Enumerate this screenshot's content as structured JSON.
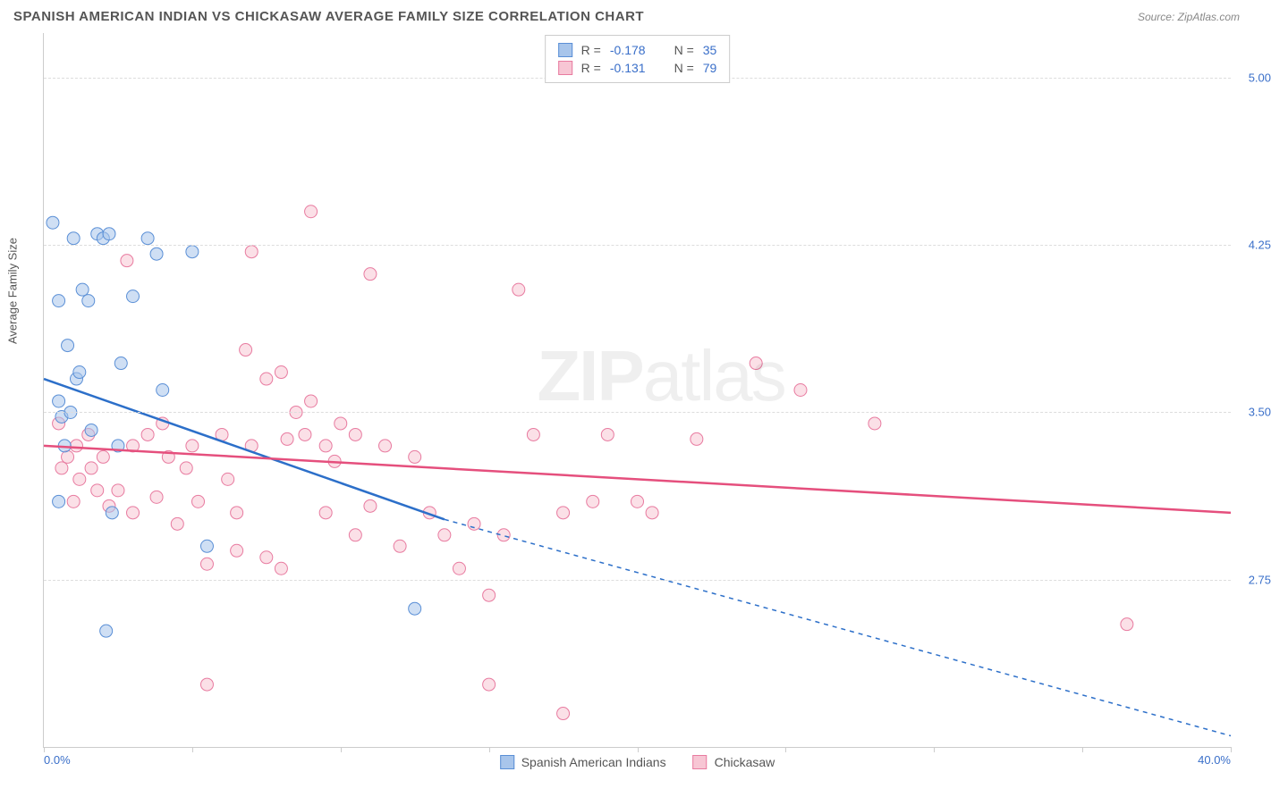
{
  "title": "SPANISH AMERICAN INDIAN VS CHICKASAW AVERAGE FAMILY SIZE CORRELATION CHART",
  "source": "Source: ZipAtlas.com",
  "watermark": {
    "part1": "ZIP",
    "part2": "atlas"
  },
  "chart": {
    "type": "scatter",
    "xlabel": "",
    "ylabel": "Average Family Size",
    "xlim": [
      0,
      40
    ],
    "ylim": [
      2.0,
      5.2
    ],
    "x_tick_labels": [
      {
        "x": 0,
        "label": "0.0%"
      },
      {
        "x": 40,
        "label": "40.0%"
      }
    ],
    "x_tick_positions": [
      0,
      5,
      10,
      15,
      20,
      25,
      30,
      35,
      40
    ],
    "y_ticks": [
      2.75,
      3.5,
      4.25,
      5.0
    ],
    "y_tick_labels": [
      "2.75",
      "3.50",
      "4.25",
      "5.00"
    ],
    "grid_color": "#dddddd",
    "background_color": "#ffffff",
    "axis_color": "#cccccc",
    "tick_label_color": "#3a6fc9",
    "label_fontsize": 13,
    "marker_radius": 7,
    "marker_opacity": 0.55,
    "line_width": 2.5
  },
  "series": [
    {
      "name": "Spanish American Indians",
      "color_fill": "#a8c5eb",
      "color_stroke": "#5a8fd6",
      "R": "-0.178",
      "N": "35",
      "trend": {
        "x1": 0,
        "y1": 3.65,
        "x2": 13.5,
        "y2": 3.02,
        "extend_x2": 40,
        "extend_y2": 2.05
      },
      "trend_color": "#2c6fc9",
      "points": [
        [
          0.3,
          4.35
        ],
        [
          0.5,
          4.0
        ],
        [
          0.5,
          3.55
        ],
        [
          0.5,
          3.1
        ],
        [
          0.6,
          3.48
        ],
        [
          0.7,
          3.35
        ],
        [
          0.8,
          3.8
        ],
        [
          0.9,
          3.5
        ],
        [
          1.0,
          4.28
        ],
        [
          1.1,
          3.65
        ],
        [
          1.2,
          3.68
        ],
        [
          1.3,
          4.05
        ],
        [
          1.5,
          4.0
        ],
        [
          1.6,
          3.42
        ],
        [
          1.8,
          4.3
        ],
        [
          2.0,
          4.28
        ],
        [
          2.1,
          2.52
        ],
        [
          2.2,
          4.3
        ],
        [
          2.3,
          3.05
        ],
        [
          2.5,
          3.35
        ],
        [
          2.6,
          3.72
        ],
        [
          3.0,
          4.02
        ],
        [
          3.5,
          4.28
        ],
        [
          3.8,
          4.21
        ],
        [
          4.0,
          3.6
        ],
        [
          5.0,
          4.22
        ],
        [
          5.5,
          2.9
        ],
        [
          12.5,
          2.62
        ]
      ]
    },
    {
      "name": "Chickasaw",
      "color_fill": "#f7c6d4",
      "color_stroke": "#e87ba0",
      "R": "-0.131",
      "N": "79",
      "trend": {
        "x1": 0,
        "y1": 3.35,
        "x2": 40,
        "y2": 3.05
      },
      "trend_color": "#e54f7d",
      "points": [
        [
          0.5,
          3.45
        ],
        [
          0.6,
          3.25
        ],
        [
          0.8,
          3.3
        ],
        [
          1.0,
          3.1
        ],
        [
          1.1,
          3.35
        ],
        [
          1.2,
          3.2
        ],
        [
          1.5,
          3.4
        ],
        [
          1.6,
          3.25
        ],
        [
          1.8,
          3.15
        ],
        [
          2.0,
          3.3
        ],
        [
          2.2,
          3.08
        ],
        [
          2.5,
          3.15
        ],
        [
          2.8,
          4.18
        ],
        [
          3.0,
          3.35
        ],
        [
          3.0,
          3.05
        ],
        [
          3.5,
          3.4
        ],
        [
          3.8,
          3.12
        ],
        [
          4.0,
          3.45
        ],
        [
          4.2,
          3.3
        ],
        [
          4.5,
          3.0
        ],
        [
          4.8,
          3.25
        ],
        [
          5.0,
          3.35
        ],
        [
          5.2,
          3.1
        ],
        [
          5.5,
          2.82
        ],
        [
          5.5,
          2.28
        ],
        [
          6.0,
          3.4
        ],
        [
          6.2,
          3.2
        ],
        [
          6.5,
          2.88
        ],
        [
          6.5,
          3.05
        ],
        [
          6.8,
          3.78
        ],
        [
          7.0,
          3.35
        ],
        [
          7.0,
          4.22
        ],
        [
          7.5,
          3.65
        ],
        [
          7.5,
          2.85
        ],
        [
          8.0,
          2.8
        ],
        [
          8.0,
          3.68
        ],
        [
          8.2,
          3.38
        ],
        [
          8.5,
          3.5
        ],
        [
          8.8,
          3.4
        ],
        [
          9.0,
          4.4
        ],
        [
          9.0,
          3.55
        ],
        [
          9.5,
          3.35
        ],
        [
          9.5,
          3.05
        ],
        [
          9.8,
          3.28
        ],
        [
          10.0,
          3.45
        ],
        [
          10.5,
          2.95
        ],
        [
          10.5,
          3.4
        ],
        [
          11.0,
          4.12
        ],
        [
          11.0,
          3.08
        ],
        [
          11.5,
          3.35
        ],
        [
          12.0,
          2.9
        ],
        [
          12.5,
          3.3
        ],
        [
          13.0,
          3.05
        ],
        [
          13.5,
          2.95
        ],
        [
          14.0,
          2.8
        ],
        [
          14.5,
          3.0
        ],
        [
          15.0,
          2.68
        ],
        [
          15.0,
          2.28
        ],
        [
          15.5,
          2.95
        ],
        [
          16.0,
          4.05
        ],
        [
          16.5,
          3.4
        ],
        [
          17.5,
          3.05
        ],
        [
          17.5,
          2.15
        ],
        [
          18.5,
          3.1
        ],
        [
          19.0,
          3.4
        ],
        [
          20.0,
          3.1
        ],
        [
          20.5,
          3.05
        ],
        [
          22.0,
          3.38
        ],
        [
          24.0,
          3.72
        ],
        [
          25.5,
          3.6
        ],
        [
          28.0,
          3.45
        ],
        [
          36.5,
          2.55
        ]
      ]
    }
  ],
  "stats_box": {
    "r_label": "R =",
    "n_label": "N ="
  },
  "legend_bottom": [
    {
      "swatch_fill": "#a8c5eb",
      "swatch_stroke": "#5a8fd6",
      "label": "Spanish American Indians"
    },
    {
      "swatch_fill": "#f7c6d4",
      "swatch_stroke": "#e87ba0",
      "label": "Chickasaw"
    }
  ]
}
